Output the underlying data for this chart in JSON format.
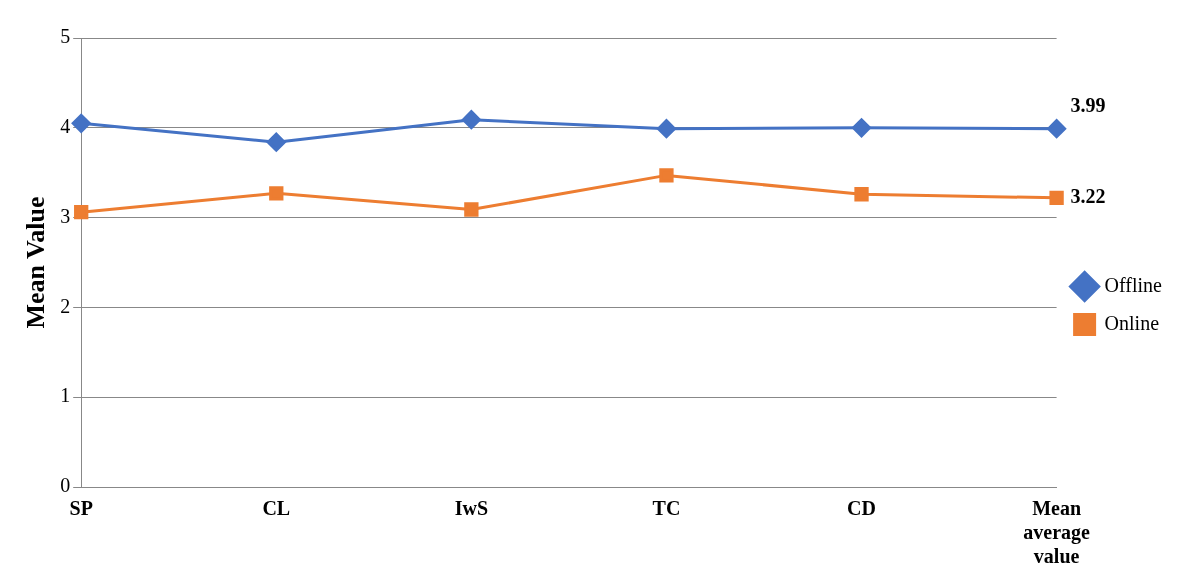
{
  "chart_data": {
    "type": "line",
    "ylabel": "Mean Value",
    "categories": [
      "SP",
      "CL",
      "IwS",
      "TC",
      "CD",
      "Mean average value"
    ],
    "series": [
      {
        "name": "Offline",
        "color": "#4472c4",
        "marker": "diamond",
        "values": [
          4.05,
          3.84,
          4.09,
          3.99,
          4.0,
          3.99
        ],
        "value_labels": [
          null,
          null,
          null,
          null,
          null,
          "3.99"
        ]
      },
      {
        "name": "Online",
        "color": "#ed7d31",
        "marker": "square",
        "values": [
          3.06,
          3.27,
          3.09,
          3.47,
          3.26,
          3.22
        ],
        "value_labels": [
          null,
          null,
          null,
          null,
          null,
          "3.22"
        ]
      }
    ],
    "ylim": [
      0,
      5
    ],
    "yticks": [
      0,
      1,
      2,
      3,
      4,
      5
    ],
    "grid": "y",
    "legend": "right"
  }
}
